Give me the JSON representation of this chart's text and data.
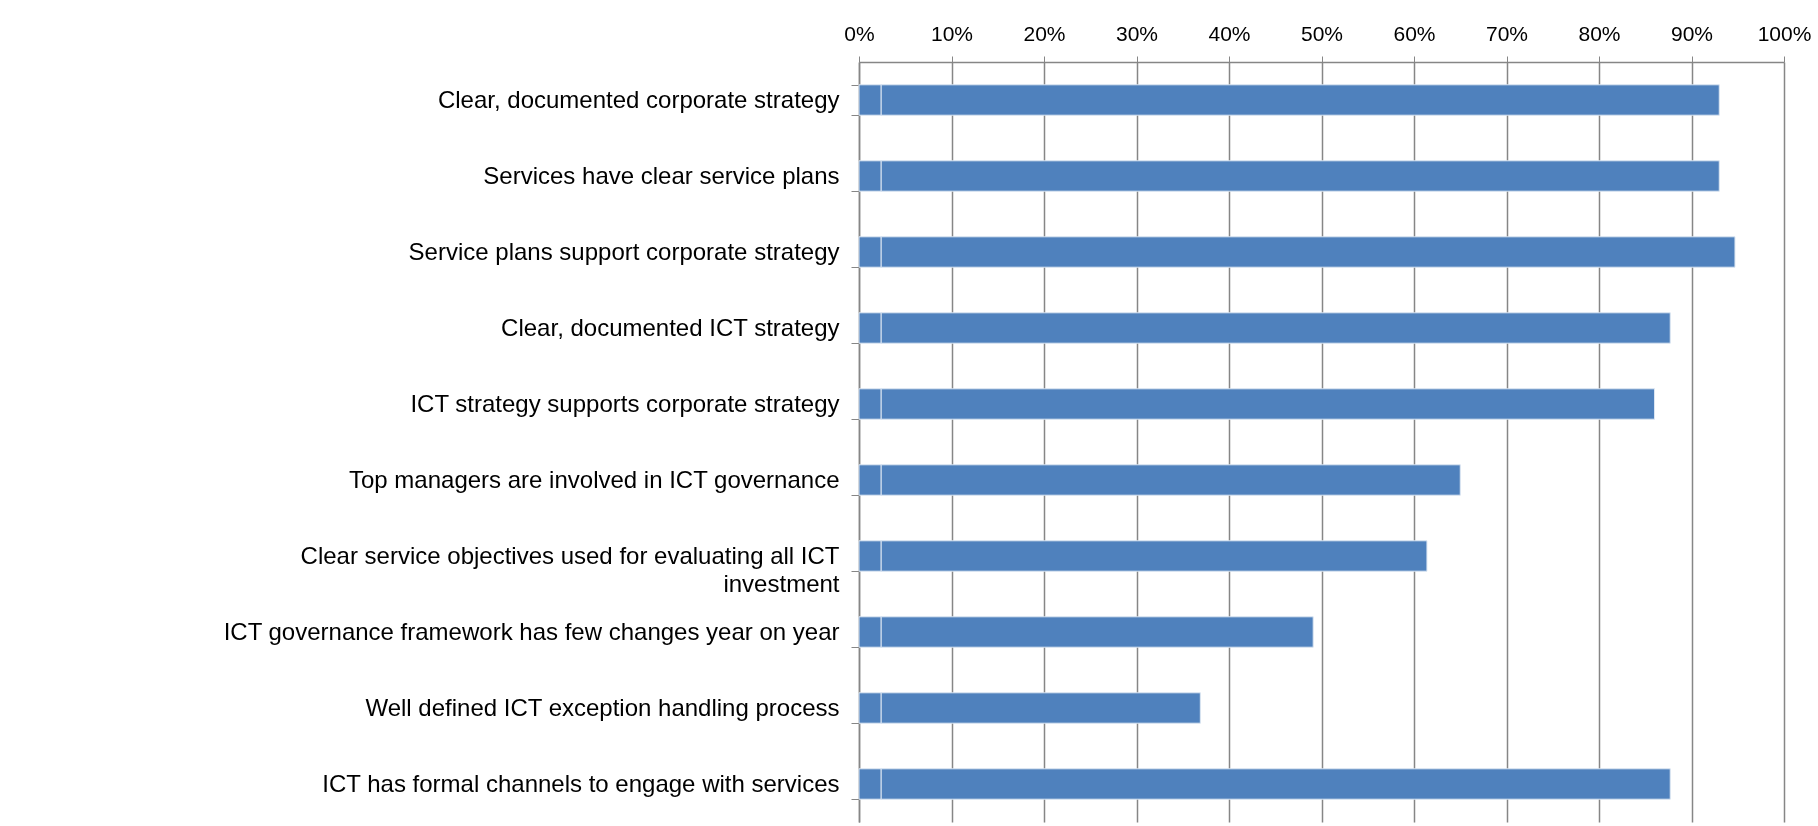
{
  "chart_data": {
    "type": "bar",
    "orientation": "horizontal",
    "stacked": true,
    "grid": "x",
    "categories": [
      "Clear, documented corporate strategy",
      "Services have clear service plans",
      "Service plans support corporate strategy",
      "Clear, documented ICT strategy",
      "ICT strategy supports corporate strategy",
      "Top managers are involved in ICT governance",
      "Clear service objectives used for evaluating all ICT investment",
      "ICT governance framework has few changes year on year",
      "Well defined ICT exception handling process",
      "ICT has formal channels to engage with services"
    ],
    "series": [
      {
        "color": "#4f81bd",
        "values": [
          2.4,
          2.4,
          2.4,
          2.4,
          2.4,
          2.4,
          2.4,
          2.4,
          2.4,
          2.4
        ]
      },
      {
        "color": "#4f81bd",
        "values": [
          90.6,
          90.6,
          92.3,
          85.3,
          83.6,
          62.6,
          59,
          46.7,
          34.5,
          85.3
        ]
      }
    ],
    "xlim": [
      0,
      100
    ],
    "xticks": [
      {
        "value": 0,
        "label": "0%"
      },
      {
        "value": 10,
        "label": "10%"
      },
      {
        "value": 20,
        "label": "20%"
      },
      {
        "value": 30,
        "label": "30%"
      },
      {
        "value": 40,
        "label": "40%"
      },
      {
        "value": 50,
        "label": "50%"
      },
      {
        "value": 60,
        "label": "60%"
      },
      {
        "value": 70,
        "label": "70%"
      },
      {
        "value": 80,
        "label": "80%"
      },
      {
        "value": 90,
        "label": "90%"
      },
      {
        "value": 100,
        "label": "100%"
      }
    ]
  }
}
